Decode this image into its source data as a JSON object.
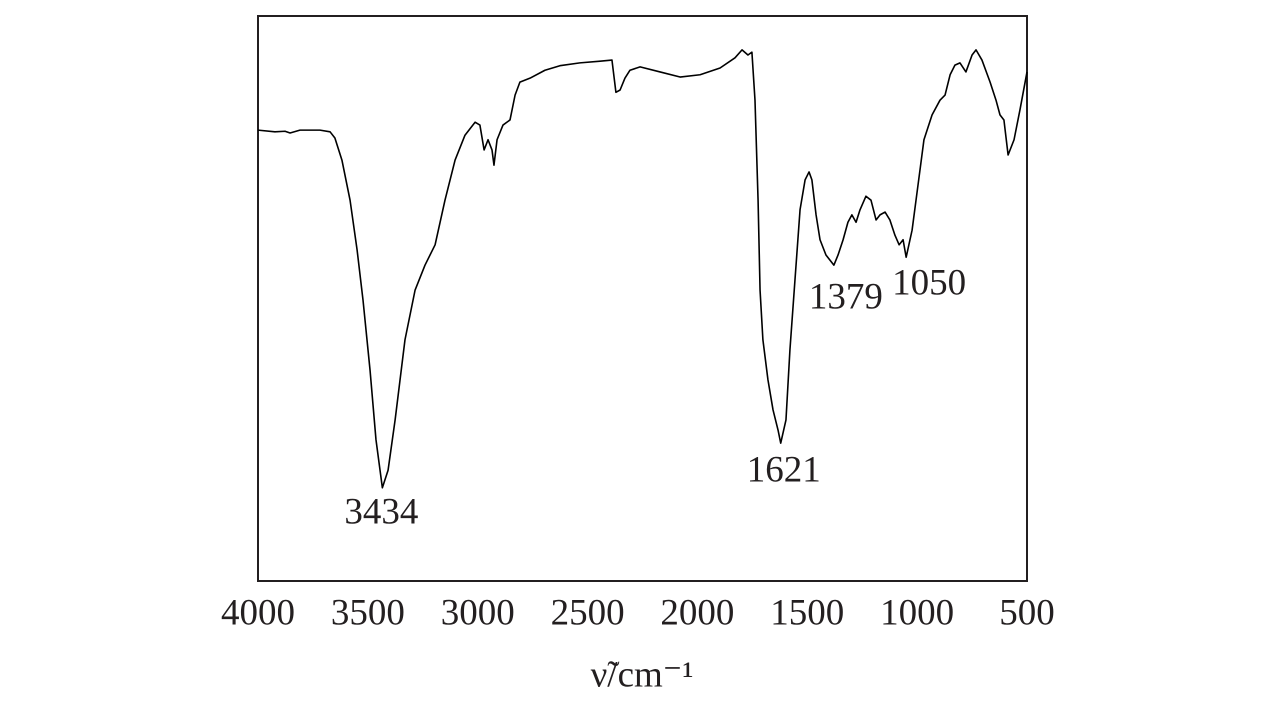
{
  "chart_data": {
    "type": "line",
    "xlabel": "ν̃/cm⁻¹",
    "xlim": [
      4000,
      500
    ],
    "ylim": [
      0,
      100
    ],
    "xticks": [
      4000,
      3500,
      3000,
      2500,
      2000,
      1500,
      1000,
      500
    ],
    "grid": false,
    "series": [
      {
        "color": "#000000",
        "x": [
          4000,
          3923,
          3877,
          3854,
          3809,
          3718,
          3672,
          3650,
          3618,
          3581,
          3549,
          3522,
          3490,
          3463,
          3434,
          3408,
          3376,
          3331,
          3285,
          3240,
          3194,
          3149,
          3103,
          3058,
          3012,
          2990,
          2971,
          2953,
          2935,
          2926,
          2912,
          2885,
          2853,
          2830,
          2808,
          2762,
          2694,
          2626,
          2535,
          2443,
          2389,
          2371,
          2352,
          2330,
          2307,
          2261,
          2170,
          2079,
          1988,
          1897,
          1829,
          1797,
          1770,
          1752,
          1738,
          1724,
          1715,
          1702,
          1679,
          1656,
          1633,
          1621,
          1597,
          1579,
          1556,
          1533,
          1510,
          1492,
          1479,
          1460,
          1442,
          1415,
          1379,
          1360,
          1337,
          1315,
          1297,
          1278,
          1260,
          1233,
          1210,
          1187,
          1169,
          1146,
          1124,
          1101,
          1082,
          1064,
          1050,
          1023,
          996,
          969,
          932,
          896,
          873,
          850,
          828,
          805,
          778,
          750,
          732,
          705,
          668,
          641,
          623,
          605,
          586,
          559,
          532,
          500
        ],
        "values": [
          79.8,
          79.5,
          79.6,
          79.3,
          79.8,
          79.8,
          79.5,
          78.4,
          74.5,
          67.4,
          58.6,
          49.7,
          37.3,
          25.0,
          16.5,
          19.6,
          28.5,
          42.7,
          51.5,
          55.9,
          59.5,
          67.4,
          74.5,
          78.9,
          81.2,
          80.7,
          76.3,
          78.1,
          76.3,
          73.6,
          78.1,
          80.7,
          81.6,
          86.0,
          88.3,
          89.0,
          90.4,
          91.2,
          91.7,
          92.0,
          92.2,
          86.5,
          86.9,
          89.0,
          90.4,
          91.0,
          90.1,
          89.2,
          89.6,
          90.8,
          92.6,
          94.0,
          93.1,
          93.6,
          85.1,
          67.4,
          51.5,
          42.7,
          35.6,
          30.3,
          26.7,
          24.4,
          28.5,
          40.9,
          53.3,
          65.7,
          71.0,
          72.4,
          71.0,
          64.8,
          60.4,
          57.7,
          55.9,
          57.7,
          60.4,
          63.5,
          64.8,
          63.5,
          65.7,
          68.1,
          67.4,
          63.9,
          64.8,
          65.3,
          63.9,
          61.2,
          59.5,
          60.4,
          57.3,
          62.1,
          70.1,
          78.1,
          82.5,
          85.1,
          86.0,
          89.6,
          91.3,
          91.7,
          90.1,
          93.1,
          94.0,
          92.2,
          88.3,
          85.1,
          82.5,
          81.6,
          75.4,
          78.1,
          83.4,
          90.1
        ]
      }
    ],
    "annotations": [
      {
        "text": "3434",
        "x": 3434,
        "y": 16.5
      },
      {
        "text": "1621",
        "x": 1621,
        "y": 24.4
      },
      {
        "text": "1379",
        "x": 1379,
        "y": 55.9
      },
      {
        "text": "1050",
        "x": 1050,
        "y": 57.3
      }
    ]
  }
}
